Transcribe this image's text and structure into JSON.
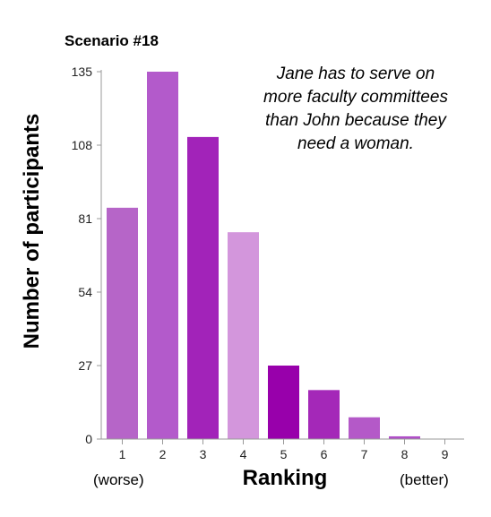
{
  "chart_data": {
    "type": "bar",
    "title": "Scenario #18",
    "annotation": [
      "Jane has to serve on",
      "more faculty committees",
      "than John because they",
      "need a woman."
    ],
    "ylabel": "Number of participants",
    "xlabel": "Ranking",
    "x_note_left": "(worse)",
    "x_note_right": "(better)",
    "categories": [
      "1",
      "2",
      "3",
      "4",
      "5",
      "6",
      "7",
      "8",
      "9"
    ],
    "values": [
      85,
      135,
      111,
      76,
      27,
      18,
      8,
      1,
      0
    ],
    "yticks": [
      0,
      27,
      54,
      81,
      108,
      135
    ],
    "ylim": [
      0,
      135
    ],
    "grid": false,
    "bar_colors": [
      "#b665c8",
      "#b35acb",
      "#a223b9",
      "#d396dc",
      "#9800ab",
      "#a428b8",
      "#b459c8",
      "#b04fc8",
      "#c686d6"
    ]
  }
}
